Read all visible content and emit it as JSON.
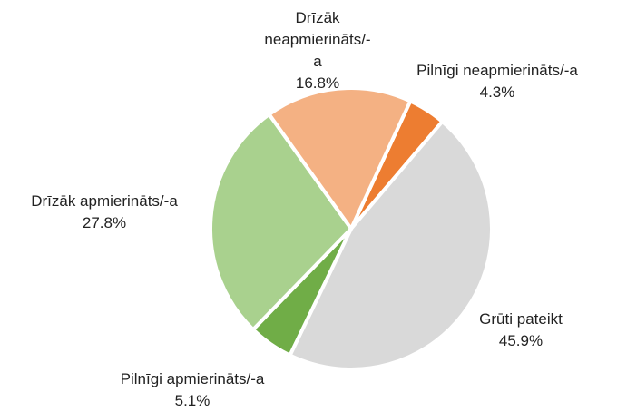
{
  "chart_data": {
    "type": "pie",
    "categories": [
      "Pilnīgi neapmierināts/-a",
      "Grūti pateikt",
      "Pilnīgi apmierināts/-a",
      "Drīzāk apmierināts/-a",
      "Drīzāk neapmierināts/-a"
    ],
    "values": [
      4.3,
      45.9,
      5.1,
      27.8,
      16.8
    ],
    "value_labels": [
      "4.3%",
      "45.9%",
      "5.1%",
      "27.8%",
      "16.8%"
    ],
    "colors": [
      "#ED7D31",
      "#D9D9D9",
      "#70AD47",
      "#A9D18E",
      "#F4B183"
    ]
  }
}
